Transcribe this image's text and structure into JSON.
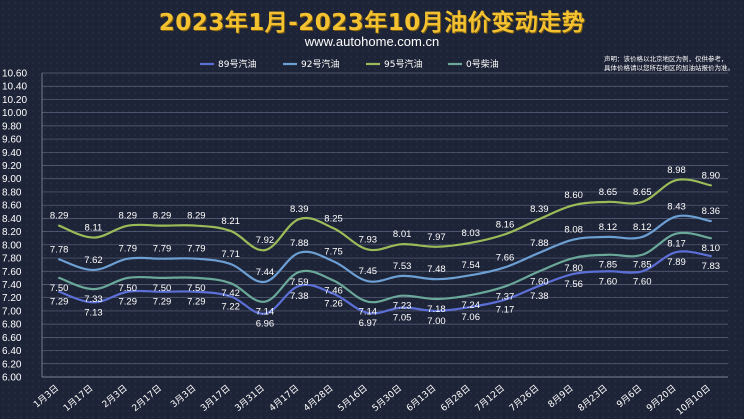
{
  "header": {
    "title": "2023年1月-2023年10月油价变动走势",
    "subtitle": "www.autohome.com.cn",
    "disclaimer_line1": "声明：该价格以北京地区为例，仅供参考，",
    "disclaimer_line2": "具体价格请以您所在地区的加油站报价为准。"
  },
  "chart_data": {
    "type": "line",
    "title": "2023年1月-2023年10月油价变动走势",
    "subtitle": "www.autohome.com.cn",
    "xlabel": "",
    "ylabel": "",
    "ylim": [
      6.0,
      10.6
    ],
    "yticks": [
      "6.00",
      "6.20",
      "6.40",
      "6.60",
      "6.80",
      "7.00",
      "7.20",
      "7.40",
      "7.60",
      "7.80",
      "8.00",
      "8.20",
      "8.40",
      "8.60",
      "8.80",
      "9.00",
      "9.20",
      "9.40",
      "9.60",
      "9.80",
      "10.00",
      "10.20",
      "10.40",
      "10.60"
    ],
    "grid": true,
    "legend_position": "top",
    "x": [
      "1月3日",
      "1月17日",
      "2月3日",
      "2月17日",
      "3月3日",
      "3月17日",
      "3月31日",
      "4月17日",
      "4月28日",
      "5月16日",
      "5月30日",
      "6月13日",
      "6月28日",
      "7月12日",
      "7月26日",
      "8月9日",
      "8月23日",
      "9月6日",
      "9月20日",
      "10月10日"
    ],
    "series": [
      {
        "name": "89号汽油",
        "color": "#5b6fd6",
        "values": [
          7.29,
          7.13,
          7.29,
          7.29,
          7.29,
          7.22,
          6.96,
          7.38,
          7.26,
          6.97,
          7.05,
          7.0,
          7.06,
          7.17,
          7.38,
          7.56,
          7.6,
          7.6,
          7.89,
          7.83
        ]
      },
      {
        "name": "92号汽油",
        "color": "#6c9fd4",
        "values": [
          7.78,
          7.62,
          7.79,
          7.79,
          7.79,
          7.71,
          7.44,
          7.88,
          7.75,
          7.45,
          7.53,
          7.48,
          7.54,
          7.66,
          7.88,
          8.08,
          8.12,
          8.12,
          8.43,
          8.36
        ]
      },
      {
        "name": "95号汽油",
        "color": "#9bbb59",
        "values": [
          8.29,
          8.11,
          8.29,
          8.29,
          8.29,
          8.21,
          7.92,
          8.39,
          8.25,
          7.93,
          8.01,
          7.97,
          8.03,
          8.16,
          8.39,
          8.6,
          8.65,
          8.65,
          8.98,
          8.9
        ]
      },
      {
        "name": "0号柴油",
        "color": "#6aa89a",
        "values": [
          7.5,
          7.33,
          7.5,
          7.5,
          7.5,
          7.42,
          7.14,
          7.59,
          7.46,
          7.14,
          7.23,
          7.18,
          7.24,
          7.37,
          7.6,
          7.8,
          7.85,
          7.85,
          8.17,
          8.1
        ]
      }
    ]
  }
}
